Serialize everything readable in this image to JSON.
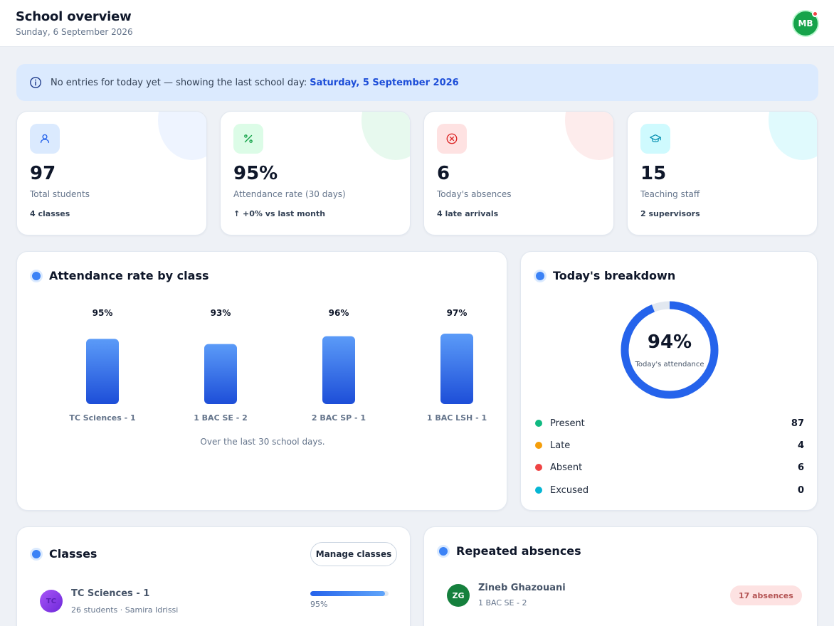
{
  "header": {
    "title": "School overview",
    "date": "Sunday, 6 September 2026",
    "avatar_initials": "MB"
  },
  "notice": {
    "text": "No entries for today yet — showing the last school day:",
    "date": "Saturday, 5 September 2026",
    "icon": "info-icon"
  },
  "stats": [
    {
      "value": "97",
      "label": "Total students",
      "sub": "4 classes",
      "icon": "users-icon",
      "color": "#2563eb",
      "bg": "#dbeafe",
      "blob": "#eef4ff"
    },
    {
      "value": "95%",
      "label": "Attendance rate (30 days)",
      "sub": "↑  +0% vs last month",
      "icon": "percent-icon",
      "color": "#16a34a",
      "bg": "#dcfce7",
      "blob": "#e7f9ee"
    },
    {
      "value": "6",
      "label": "Today's absences",
      "sub": "4 late arrivals",
      "icon": "x-circle-icon",
      "color": "#dc2626",
      "bg": "#fee2e2",
      "blob": "#fdecec"
    },
    {
      "value": "15",
      "label": "Teaching staff",
      "sub": "2 supervisors",
      "icon": "graduation-cap-icon",
      "color": "#0891b2",
      "bg": "#cffafe",
      "blob": "#e0fafd"
    }
  ],
  "attendance_by_class": {
    "title": "Attendance rate by class",
    "footnote": "Over the last 30 school days."
  },
  "chart_data": {
    "type": "bar",
    "categories": [
      "TC Sciences - 1",
      "1 BAC SE - 2",
      "2 BAC SP - 1",
      "1 BAC LSH - 1"
    ],
    "values": [
      95,
      93,
      96,
      97
    ],
    "value_labels": [
      "95%",
      "93%",
      "96%",
      "97%"
    ],
    "ylim": [
      0,
      100
    ],
    "grid": false,
    "bar_color_top": "#5b9bf8",
    "bar_color_bottom": "#1d4ed8"
  },
  "breakdown": {
    "title": "Today's breakdown",
    "center_value": "94%",
    "center_label": "Today's attendance",
    "rate": 0.94,
    "ring_color": "#2563eb",
    "track_color": "#e2e8f0",
    "items": [
      {
        "label": "Present",
        "count": "87",
        "color": "#10b981"
      },
      {
        "label": "Late",
        "count": "4",
        "color": "#f59e0b"
      },
      {
        "label": "Absent",
        "count": "6",
        "color": "#ef4444"
      },
      {
        "label": "Excused",
        "count": "0",
        "color": "#06b6d4"
      }
    ]
  },
  "classes": {
    "title": "Classes",
    "manage_label": "Manage classes",
    "items": [
      {
        "initials": "TC",
        "name": "TC Sciences - 1",
        "meta": "26 students · Samira Idrissi",
        "rate": 0.95,
        "rate_label": "95%"
      }
    ]
  },
  "absences": {
    "title": "Repeated absences",
    "items": [
      {
        "initials": "ZG",
        "name": "Zineb Ghazouani",
        "class": "1 BAC SE - 2",
        "badge": "17 absences"
      }
    ]
  }
}
